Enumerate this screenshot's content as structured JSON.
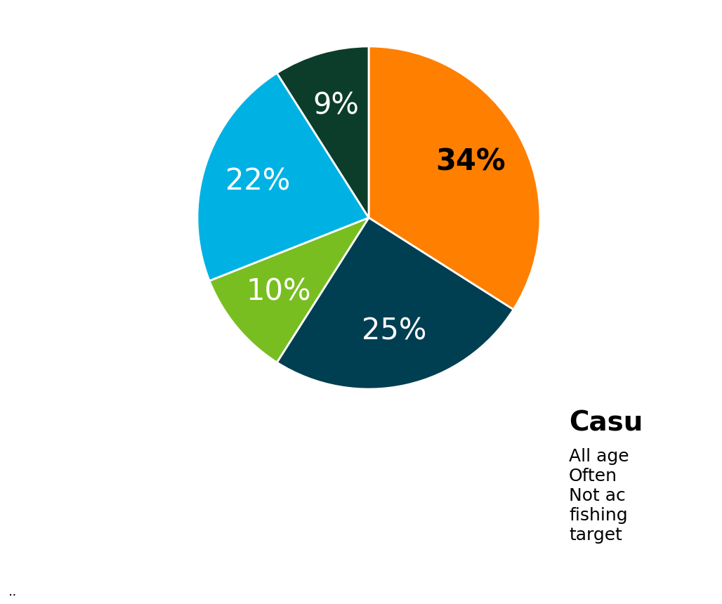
{
  "chart_data": {
    "type": "pie",
    "values": [
      34,
      25,
      10,
      22,
      9
    ],
    "value_labels": [
      "34%",
      "25%",
      "10%",
      "22%",
      "9%"
    ],
    "colors": [
      "#ff7f00",
      "#003e52",
      "#78be20",
      "#00b2e3",
      "#0b3d2a"
    ],
    "annotations": [
      "Casu",
      "All age",
      "Often",
      "Not ac",
      "fishing",
      "target",
      ".."
    ]
  }
}
